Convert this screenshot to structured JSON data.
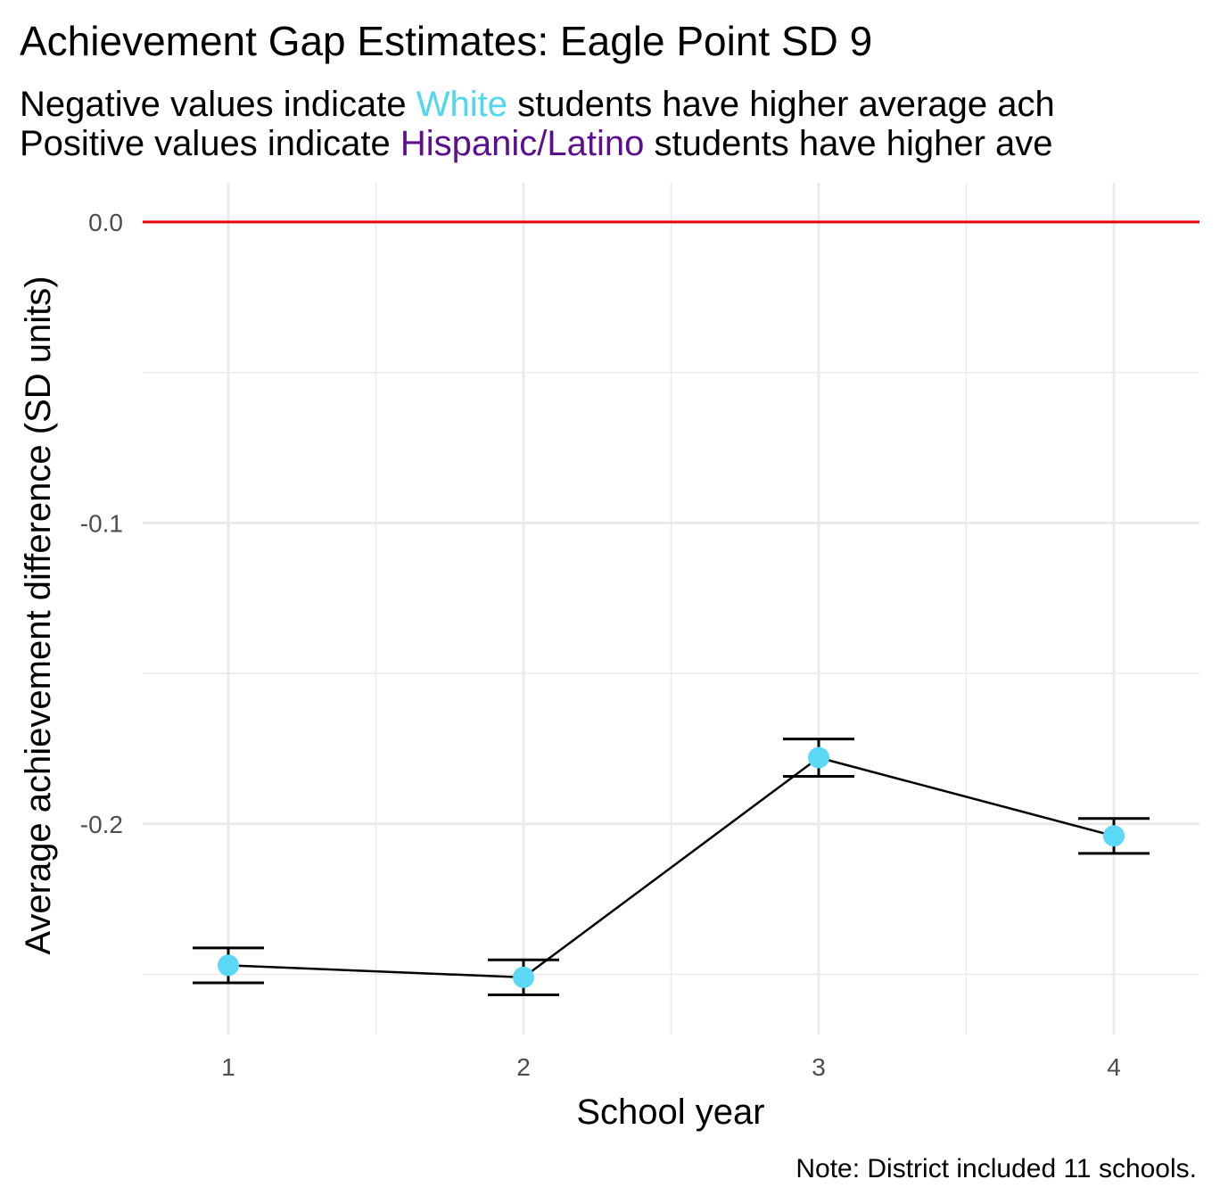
{
  "chart_data": {
    "type": "line",
    "title": "Achievement Gap Estimates: Eagle Point SD 9",
    "subtitle_lines": [
      {
        "parts": [
          {
            "text": "Negative values indicate ",
            "color": "#000000"
          },
          {
            "text": "White",
            "color": "#4fd6f0"
          },
          {
            "text": " students have higher average ach",
            "color": "#000000"
          }
        ]
      },
      {
        "parts": [
          {
            "text": "Positive values indicate ",
            "color": "#000000"
          },
          {
            "text": "Hispanic/Latino",
            "color": "#5b0f8f"
          },
          {
            "text": " students have higher ave",
            "color": "#000000"
          }
        ]
      }
    ],
    "x_label": "School year",
    "y_label": "Average achievement difference (SD units)",
    "note": "Note: District included 11 schools.",
    "x": [
      1,
      2,
      3,
      4
    ],
    "series": [
      {
        "values": [
          -0.247,
          -0.251,
          -0.178,
          -0.204
        ],
        "errors": [
          0.0058,
          0.0058,
          0.0062,
          0.0058
        ],
        "color": "#5ad8f5",
        "line_color": "#000000"
      }
    ],
    "reference_line": {
      "value": 0,
      "color": "#e8000b"
    },
    "xlim": [
      0.71,
      4.29
    ],
    "ylim": [
      -0.27,
      0.013
    ],
    "xticks": [
      1,
      2,
      3,
      4
    ],
    "yticks": [
      {
        "value": 0,
        "label": "0.0"
      },
      -0.1,
      -0.2
    ],
    "grid": true
  }
}
